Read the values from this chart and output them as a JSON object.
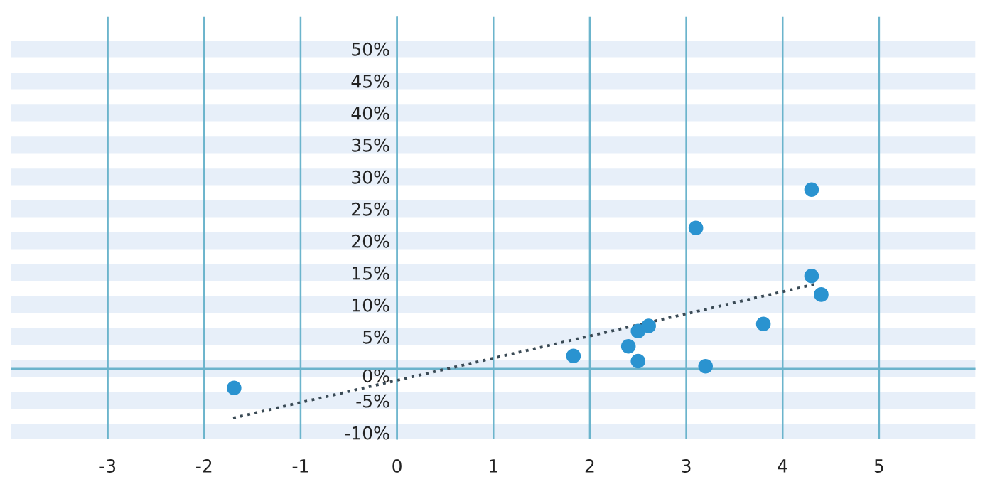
{
  "chart_data": {
    "type": "scatter",
    "xlim": [
      -4,
      6
    ],
    "xticks": [
      -3,
      -2,
      -1,
      0,
      1,
      2,
      3,
      4,
      5
    ],
    "ylim": [
      -11,
      55
    ],
    "yticks": [
      {
        "value": -10,
        "label": "-10%"
      },
      {
        "value": -5,
        "label": "-5%"
      },
      {
        "value": 0,
        "label": "0%"
      },
      {
        "value": 5,
        "label": "5%"
      },
      {
        "value": 10,
        "label": "10%"
      },
      {
        "value": 15,
        "label": "15%"
      },
      {
        "value": 20,
        "label": "20%"
      },
      {
        "value": 25,
        "label": "25%"
      },
      {
        "value": 30,
        "label": "30%"
      },
      {
        "value": 35,
        "label": "35%"
      },
      {
        "value": 40,
        "label": "40%"
      },
      {
        "value": 45,
        "label": "45%"
      },
      {
        "value": 50,
        "label": "50%"
      }
    ],
    "grid": "x",
    "marker": "circle",
    "ref_lines": [
      {
        "axis": "y",
        "value": 0,
        "color": "#6bb4cc"
      }
    ],
    "bands": [
      {
        "axis": "y",
        "from": -11.3,
        "to": -8.7,
        "color": "#e7eff9"
      },
      {
        "axis": "y",
        "from": -6.3,
        "to": -3.7,
        "color": "#e7eff9"
      },
      {
        "axis": "y",
        "from": -1.3,
        "to": 1.3,
        "color": "#e7eff9"
      },
      {
        "axis": "y",
        "from": 3.7,
        "to": 6.3,
        "color": "#e7eff9"
      },
      {
        "axis": "y",
        "from": 8.7,
        "to": 11.3,
        "color": "#e7eff9"
      },
      {
        "axis": "y",
        "from": 13.7,
        "to": 16.3,
        "color": "#e7eff9"
      },
      {
        "axis": "y",
        "from": 18.7,
        "to": 21.3,
        "color": "#e7eff9"
      },
      {
        "axis": "y",
        "from": 23.7,
        "to": 26.3,
        "color": "#e7eff9"
      },
      {
        "axis": "y",
        "from": 28.7,
        "to": 31.3,
        "color": "#e7eff9"
      },
      {
        "axis": "y",
        "from": 33.7,
        "to": 36.3,
        "color": "#e7eff9"
      },
      {
        "axis": "y",
        "from": 38.7,
        "to": 41.3,
        "color": "#e7eff9"
      },
      {
        "axis": "y",
        "from": 43.7,
        "to": 46.3,
        "color": "#e7eff9"
      },
      {
        "axis": "y",
        "from": 48.7,
        "to": 51.3,
        "color": "#e7eff9"
      }
    ],
    "series": [
      {
        "color": "#2a93d0",
        "x": [
          -1.69,
          1.83,
          2.4,
          2.5,
          2.5,
          2.61,
          3.1,
          3.2,
          3.8,
          4.3,
          4.3,
          4.4
        ],
        "values": [
          -3,
          2,
          3.5,
          1.2,
          5.9,
          6.7,
          22,
          0.4,
          7,
          28,
          14.5,
          11.6
        ]
      },
      {
        "type": "line",
        "color": "#3a4a55",
        "line_style": "dotted",
        "marker": "none",
        "x": [
          -1.7,
          4.33
        ],
        "values": [
          -7.7,
          13.2
        ]
      }
    ]
  }
}
